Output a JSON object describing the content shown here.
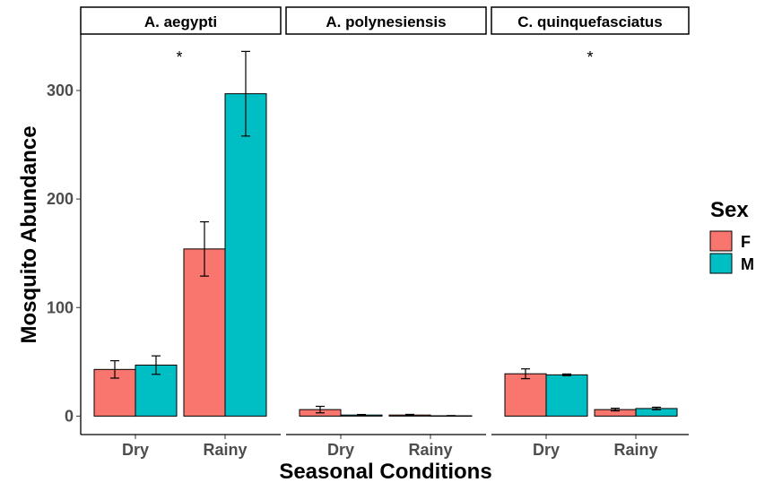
{
  "chart_data": {
    "type": "bar",
    "facets": [
      "A. aegypti",
      "A. polynesiensis",
      "C. quinquefasciatus"
    ],
    "categories": [
      "Dry",
      "Rainy"
    ],
    "xlabel": "Seasonal Conditions",
    "ylabel": "Mosquito Abundance",
    "ylim": [
      -17,
      352
    ],
    "yticks": [
      0,
      100,
      200,
      300
    ],
    "legend": {
      "title": "Sex",
      "position": "right"
    },
    "series": [
      {
        "name": "F",
        "color": "#F8766D",
        "values": [
          [
            43,
            154
          ],
          [
            6,
            1
          ],
          [
            39,
            6
          ]
        ],
        "err": [
          [
            8,
            25
          ],
          [
            3,
            0.6
          ],
          [
            4.5,
            1.2
          ]
        ]
      },
      {
        "name": "M",
        "color": "#00BFC4",
        "values": [
          [
            47,
            297
          ],
          [
            1,
            0.3
          ],
          [
            38,
            7
          ]
        ],
        "err": [
          [
            8.5,
            39
          ],
          [
            0.5,
            0.2
          ],
          [
            0.8,
            1.2
          ]
        ]
      }
    ],
    "annotations": [
      {
        "facet": "A. aegypti",
        "text": "*"
      },
      {
        "facet": "C. quinquefasciatus",
        "text": "*"
      }
    ],
    "grid": false
  }
}
